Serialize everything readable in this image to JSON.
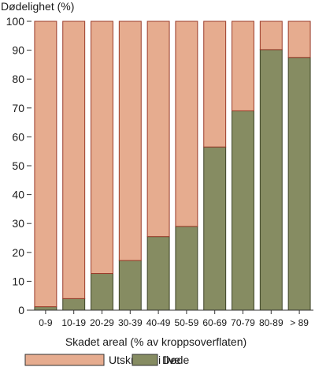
{
  "chart_data": {
    "type": "bar",
    "stacked": true,
    "ylabel": "Dødelighet (%)",
    "xlabel": "Skadet areal (% av kroppsoverflaten)",
    "ylim": [
      0,
      100
    ],
    "yticks": [
      0,
      10,
      20,
      30,
      40,
      50,
      60,
      70,
      80,
      90,
      100
    ],
    "categories": [
      "0-9",
      "10-19",
      "20-29",
      "30-39",
      "40-49",
      "50-59",
      "60-69",
      "70-79",
      "80-89",
      "> 89"
    ],
    "series": [
      {
        "name": "Døde",
        "color": "#868c62",
        "values": [
          1.2,
          4.0,
          12.7,
          17.2,
          25.5,
          29.0,
          56.5,
          69.0,
          90.2,
          87.5
        ]
      },
      {
        "name": "Utskrevet i live",
        "color": "#e6ac8f",
        "values": [
          98.8,
          96.0,
          87.3,
          82.8,
          74.5,
          71.0,
          43.5,
          31.0,
          9.8,
          12.5
        ]
      }
    ],
    "legend": {
      "position": "bottom",
      "items": [
        {
          "label": "Utskrevet i live",
          "color": "#e6ac8f"
        },
        {
          "label": "Døde",
          "color": "#868c62"
        }
      ]
    },
    "grid": false
  }
}
